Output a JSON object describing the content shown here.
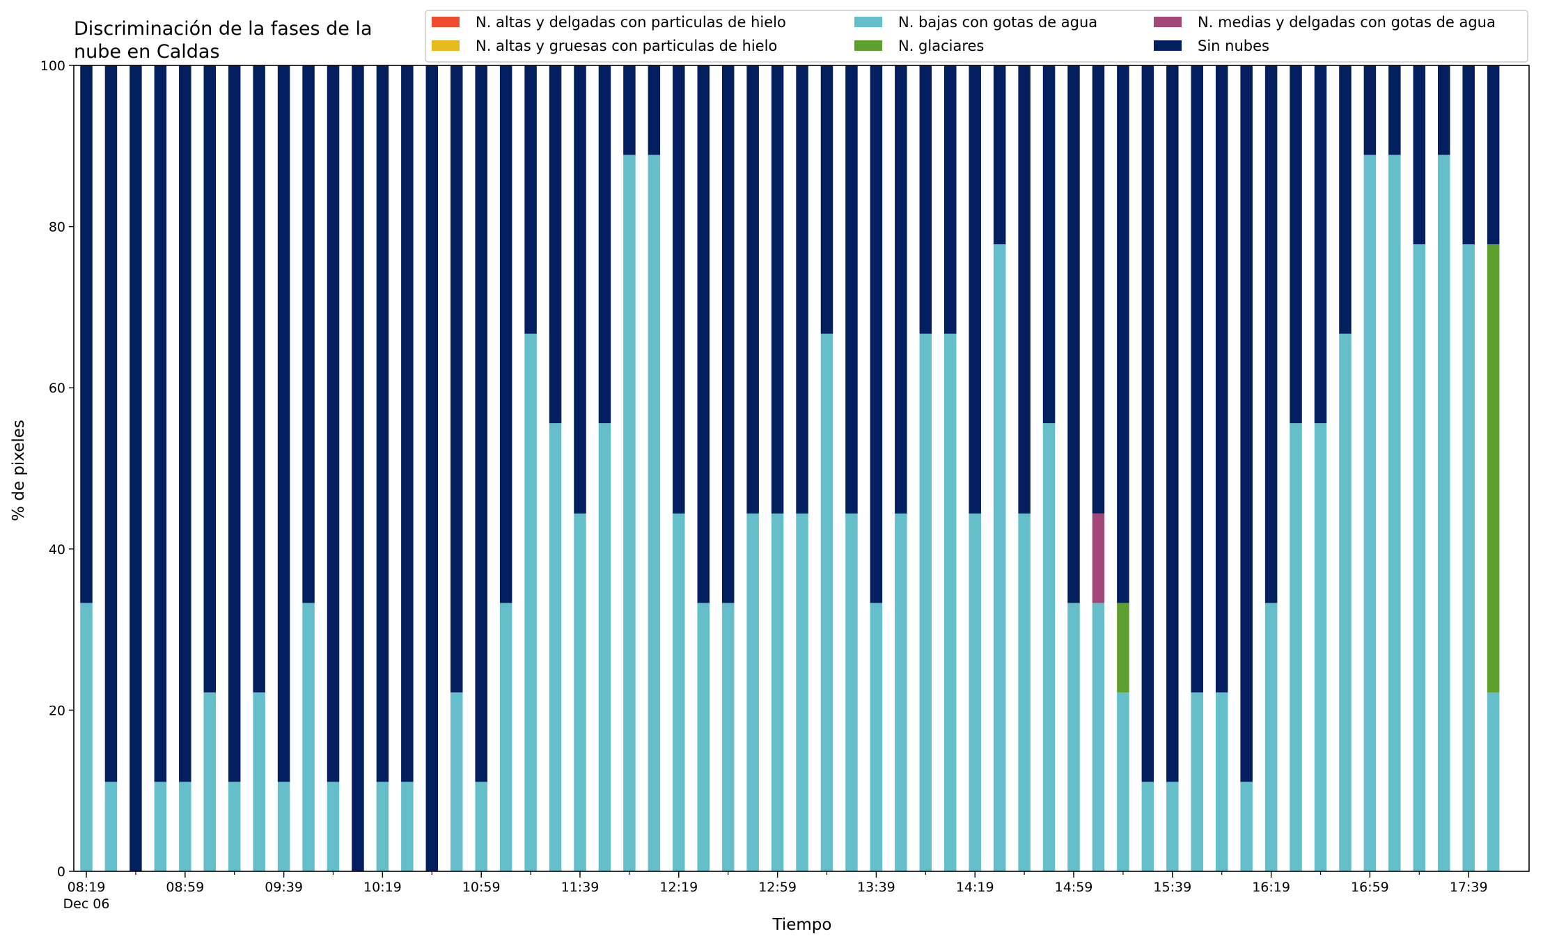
{
  "chart_data": {
    "type": "bar",
    "stacked": true,
    "title": "Discriminación de la fases de la nube en Caldas",
    "title_lines": [
      "Discriminación de la fases de la",
      "nube en Caldas"
    ],
    "xlabel": "Tiempo",
    "ylabel": "% de pixeles",
    "ylim": [
      0,
      100
    ],
    "yticks": [
      0,
      20,
      40,
      60,
      80,
      100
    ],
    "x_tick_labels": [
      {
        "index": 0,
        "text": "08:19",
        "sub": "Dec 06"
      },
      {
        "index": 4,
        "text": "08:59"
      },
      {
        "index": 8,
        "text": "09:39"
      },
      {
        "index": 12,
        "text": "10:19"
      },
      {
        "index": 16,
        "text": "10:59"
      },
      {
        "index": 20,
        "text": "11:39"
      },
      {
        "index": 24,
        "text": "12:19"
      },
      {
        "index": 28,
        "text": "12:59"
      },
      {
        "index": 32,
        "text": "13:39"
      },
      {
        "index": 36,
        "text": "14:19"
      },
      {
        "index": 40,
        "text": "14:59"
      },
      {
        "index": 44,
        "text": "15:39"
      },
      {
        "index": 48,
        "text": "16:19"
      },
      {
        "index": 52,
        "text": "16:59"
      },
      {
        "index": 56,
        "text": "17:39"
      }
    ],
    "categories": [
      "08:19",
      "08:29",
      "08:39",
      "08:49",
      "08:59",
      "09:09",
      "09:19",
      "09:29",
      "09:39",
      "09:49",
      "09:59",
      "10:09",
      "10:19",
      "10:29",
      "10:39",
      "10:49",
      "10:59",
      "11:09",
      "11:19",
      "11:29",
      "11:39",
      "11:49",
      "11:59",
      "12:09",
      "12:19",
      "12:29",
      "12:39",
      "12:49",
      "12:59",
      "13:09",
      "13:19",
      "13:29",
      "13:39",
      "13:49",
      "13:59",
      "14:09",
      "14:19",
      "14:29",
      "14:39",
      "14:49",
      "14:59",
      "15:09",
      "15:19",
      "15:29",
      "15:39",
      "15:49",
      "15:59",
      "16:09",
      "16:19",
      "16:29",
      "16:39",
      "16:49",
      "16:59",
      "17:09",
      "17:19",
      "17:29",
      "17:39",
      "17:49"
    ],
    "legend_placement": "top-right",
    "legend_columns": 3,
    "series": [
      {
        "name": "N. altas y delgadas con particulas de hielo",
        "color": "#f04b2d",
        "values": [
          0,
          0,
          0,
          0,
          0,
          0,
          0,
          0,
          0,
          0,
          0,
          0,
          0,
          0,
          0,
          0,
          0,
          0,
          0,
          0,
          0,
          0,
          0,
          0,
          0,
          0,
          0,
          0,
          0,
          0,
          0,
          0,
          0,
          0,
          0,
          0,
          0,
          0,
          0,
          0,
          0,
          0,
          0,
          0,
          0,
          0,
          0,
          0,
          0,
          0,
          0,
          0,
          0,
          0,
          0,
          0,
          0,
          0
        ]
      },
      {
        "name": "N. altas y gruesas con particulas de hielo",
        "color": "#e8ba1c",
        "values": [
          0,
          0,
          0,
          0,
          0,
          0,
          0,
          0,
          0,
          0,
          0,
          0,
          0,
          0,
          0,
          0,
          0,
          0,
          0,
          0,
          0,
          0,
          0,
          0,
          0,
          0,
          0,
          0,
          0,
          0,
          0,
          0,
          0,
          0,
          0,
          0,
          0,
          0,
          0,
          0,
          0,
          0,
          0,
          0,
          0,
          0,
          0,
          0,
          0,
          0,
          0,
          0,
          0,
          0,
          0,
          0,
          0,
          0
        ]
      },
      {
        "name": "N. bajas con gotas de agua",
        "color": "#65bfcb",
        "values": [
          33.3,
          11.1,
          0,
          11.1,
          11.1,
          22.2,
          11.1,
          22.2,
          11.1,
          33.3,
          11.1,
          0,
          11.1,
          11.1,
          0,
          22.2,
          11.1,
          33.3,
          66.7,
          55.6,
          44.4,
          55.6,
          88.9,
          88.9,
          44.4,
          33.3,
          33.3,
          44.4,
          44.4,
          44.4,
          66.7,
          44.4,
          33.3,
          44.4,
          66.7,
          66.7,
          44.4,
          77.8,
          44.4,
          55.6,
          33.3,
          33.3,
          22.2,
          11.1,
          11.1,
          22.2,
          22.2,
          11.1,
          33.3,
          55.6,
          55.6,
          66.7,
          88.9,
          88.9,
          77.8,
          88.9,
          77.8,
          22.2
        ]
      },
      {
        "name": "N. glaciares",
        "color": "#5f9f30",
        "values": [
          0,
          0,
          0,
          0,
          0,
          0,
          0,
          0,
          0,
          0,
          0,
          0,
          0,
          0,
          0,
          0,
          0,
          0,
          0,
          0,
          0,
          0,
          0,
          0,
          0,
          0,
          0,
          0,
          0,
          0,
          0,
          0,
          0,
          0,
          0,
          0,
          0,
          0,
          0,
          0,
          0,
          0,
          11.1,
          0,
          0,
          0,
          0,
          0,
          0,
          0,
          0,
          0,
          0,
          0,
          0,
          0,
          0,
          55.6
        ]
      },
      {
        "name": "N. medias y delgadas con gotas de agua",
        "color": "#a3477b",
        "values": [
          0,
          0,
          0,
          0,
          0,
          0,
          0,
          0,
          0,
          0,
          0,
          0,
          0,
          0,
          0,
          0,
          0,
          0,
          0,
          0,
          0,
          0,
          0,
          0,
          0,
          0,
          0,
          0,
          0,
          0,
          0,
          0,
          0,
          0,
          0,
          0,
          0,
          0,
          0,
          0,
          0,
          11.1,
          0,
          0,
          0,
          0,
          0,
          0,
          0,
          0,
          0,
          0,
          0,
          0,
          0,
          0,
          0,
          0
        ]
      },
      {
        "name": "Sin nubes",
        "color": "#041f5f",
        "values": [
          66.7,
          88.9,
          100,
          88.9,
          88.9,
          77.8,
          88.9,
          77.8,
          88.9,
          66.7,
          88.9,
          100,
          88.9,
          88.9,
          100,
          77.8,
          88.9,
          66.7,
          33.3,
          44.4,
          55.6,
          44.4,
          11.1,
          11.1,
          55.6,
          66.7,
          66.7,
          55.6,
          55.6,
          55.6,
          33.3,
          55.6,
          66.7,
          55.6,
          33.3,
          33.3,
          55.6,
          22.2,
          55.6,
          44.4,
          66.7,
          55.6,
          66.7,
          88.9,
          88.9,
          77.8,
          77.8,
          88.9,
          66.7,
          44.4,
          44.4,
          33.3,
          11.1,
          11.1,
          22.2,
          11.1,
          22.2,
          22.2
        ]
      }
    ],
    "legend_order": [
      0,
      1,
      2,
      3,
      4,
      5
    ]
  }
}
